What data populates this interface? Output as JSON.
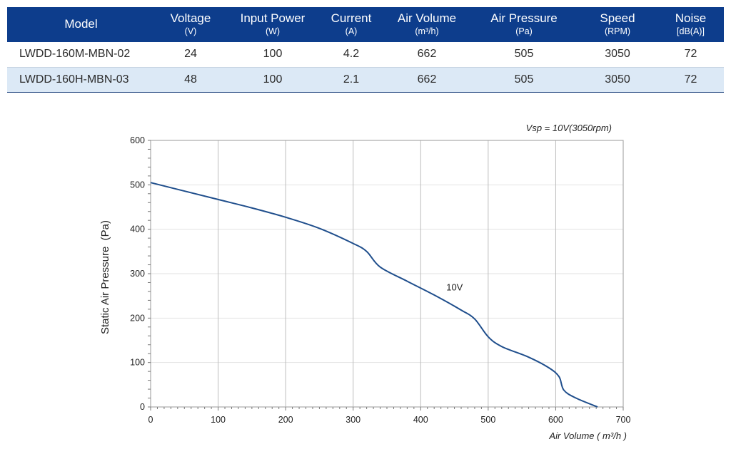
{
  "table": {
    "columns": [
      {
        "name": "Model",
        "unit": ""
      },
      {
        "name": "Voltage",
        "unit": "(V)"
      },
      {
        "name": "Input Power",
        "unit": "(W)"
      },
      {
        "name": "Current",
        "unit": "(A)"
      },
      {
        "name": "Air Volume",
        "unit": "(m³/h)"
      },
      {
        "name": "Air Pressure",
        "unit": "(Pa)"
      },
      {
        "name": "Speed",
        "unit": "(RPM)"
      },
      {
        "name": "Noise",
        "unit": "[dB(A)]"
      }
    ],
    "rows": [
      [
        "LWDD-160M-MBN-02",
        "24",
        "100",
        "4.2",
        "662",
        "505",
        "3050",
        "72"
      ],
      [
        "LWDD-160H-MBN-03",
        "48",
        "100",
        "2.1",
        "662",
        "505",
        "3050",
        "72"
      ]
    ]
  },
  "chart_data": {
    "type": "line",
    "title": "",
    "xlabel": "Air Volume ( m³/h )",
    "ylabel": "Static Air Pressure  (Pa)",
    "xlim": [
      0,
      700
    ],
    "ylim": [
      0,
      600
    ],
    "xticks": [
      0,
      100,
      200,
      300,
      400,
      500,
      600,
      700
    ],
    "yticks": [
      0,
      100,
      200,
      300,
      400,
      500,
      600
    ],
    "grid": true,
    "annotation_top_right": "Vsp = 10V(3050rpm)",
    "colors": {
      "line": "#1f4e8c",
      "grid": "#bdbdbd",
      "frame": "#9a9a9a"
    },
    "series": [
      {
        "name": "10V",
        "x": [
          0,
          50,
          100,
          150,
          200,
          250,
          300,
          320,
          340,
          380,
          420,
          460,
          480,
          500,
          520,
          560,
          590,
          605,
          612,
          630,
          662
        ],
        "y": [
          505,
          486,
          467,
          448,
          427,
          402,
          368,
          350,
          315,
          283,
          252,
          218,
          198,
          158,
          136,
          112,
          88,
          68,
          38,
          20,
          0
        ]
      }
    ]
  }
}
